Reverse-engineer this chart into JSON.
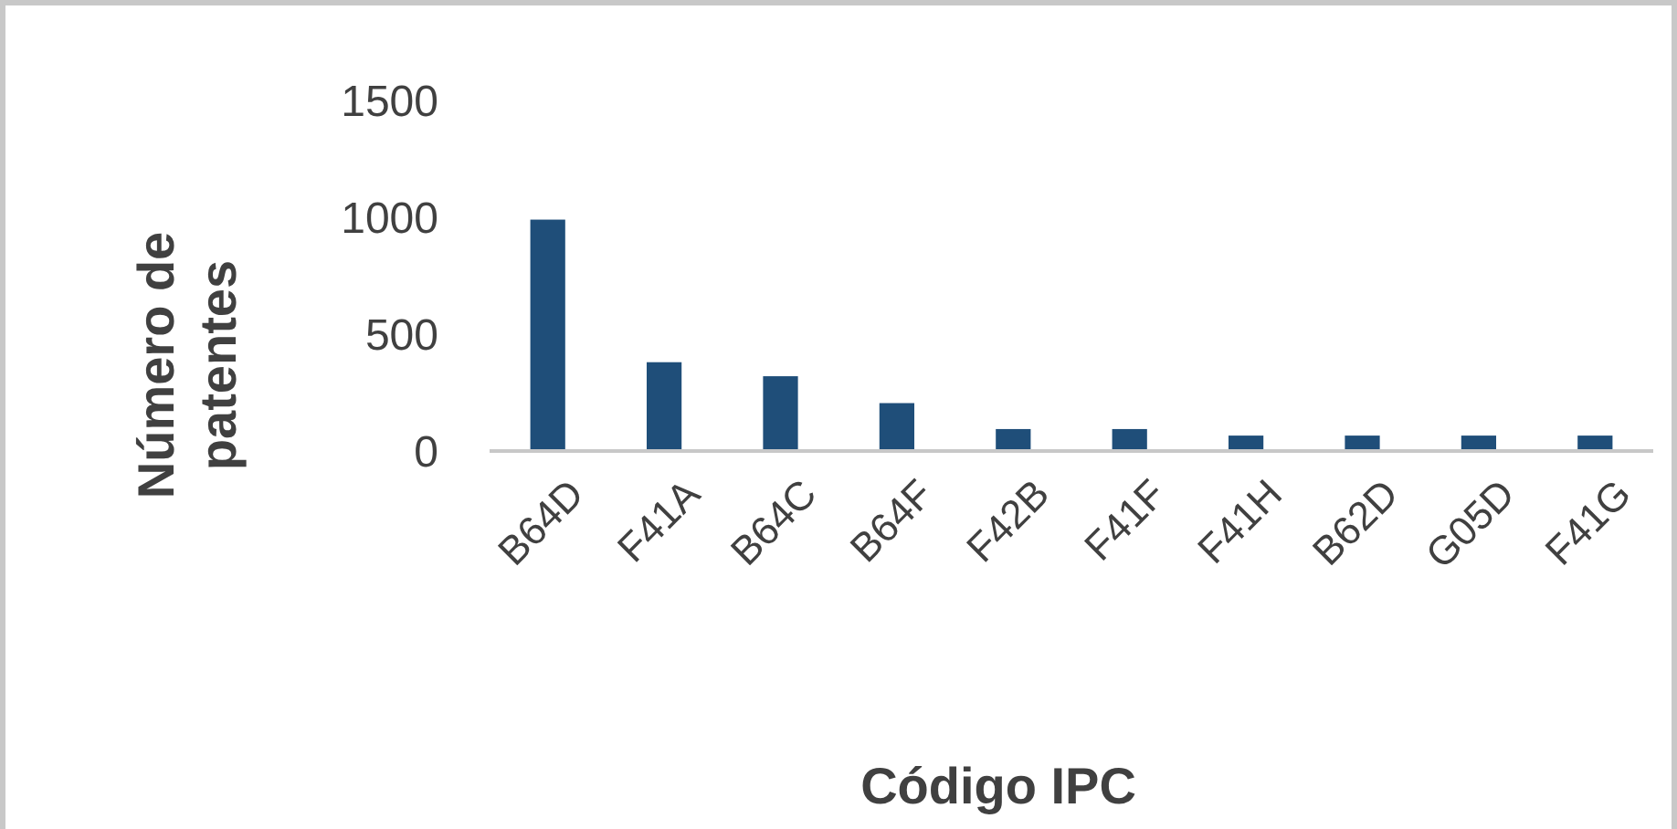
{
  "chart_data": {
    "type": "bar",
    "xlabel": "Código IPC",
    "ylabel": "Número de patentes",
    "categories": [
      "B64D",
      "F41A",
      "B64C",
      "B64F",
      "F42B",
      "F41F",
      "F41H",
      "B62D",
      "G05D",
      "F41G"
    ],
    "values": [
      990,
      380,
      320,
      205,
      94,
      94,
      66,
      66,
      66,
      66
    ],
    "color": "#1f4e79",
    "ylim": [
      0,
      1500
    ],
    "yticks": [
      0,
      500,
      1000,
      1500
    ],
    "grid": false
  }
}
